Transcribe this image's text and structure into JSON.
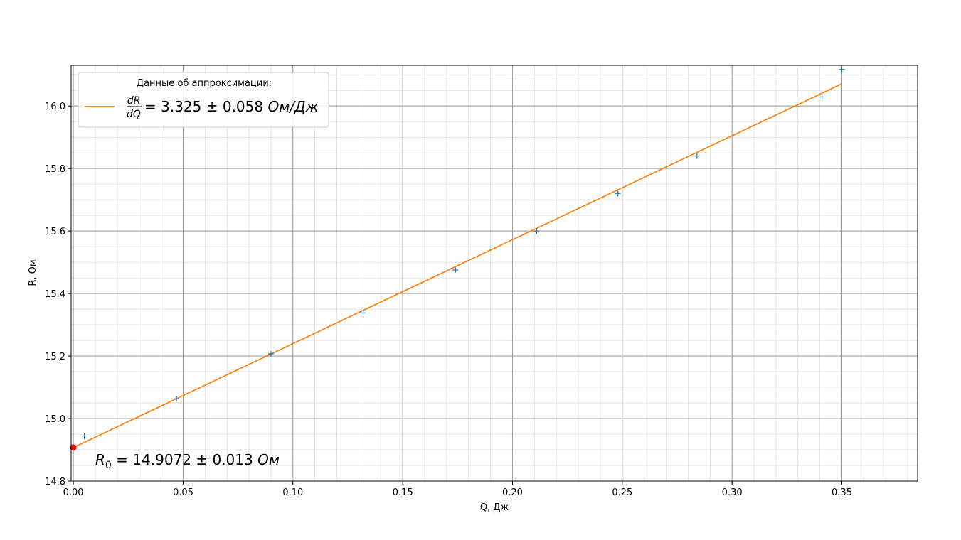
{
  "chart_data": {
    "type": "scatter",
    "xlabel": "Q, Дж",
    "ylabel": "R, Ом",
    "xlim": [
      -0.001,
      0.3845
    ],
    "ylim": [
      14.8,
      16.13
    ],
    "x_ticks": [
      0.0,
      0.05,
      0.1,
      0.15,
      0.2,
      0.25,
      0.3,
      0.35
    ],
    "x_tick_labels": [
      "0.00",
      "0.05",
      "0.10",
      "0.15",
      "0.20",
      "0.25",
      "0.30",
      "0.35"
    ],
    "y_ticks": [
      14.8,
      15.0,
      15.2,
      15.4,
      15.6,
      15.8,
      16.0
    ],
    "y_tick_labels": [
      "14.8",
      "15.0",
      "15.2",
      "15.4",
      "15.6",
      "15.8",
      "16.0"
    ],
    "x_minor_step": 0.01,
    "y_minor_step": 0.05,
    "grid": true,
    "series": [
      {
        "kind": "scatter",
        "marker": "plus",
        "color": "#1f77b4",
        "points": [
          {
            "x": 0.005,
            "y": 14.944
          },
          {
            "x": 0.047,
            "y": 15.063
          },
          {
            "x": 0.09,
            "y": 15.207
          },
          {
            "x": 0.132,
            "y": 15.338
          },
          {
            "x": 0.174,
            "y": 15.475
          },
          {
            "x": 0.211,
            "y": 15.6
          },
          {
            "x": 0.248,
            "y": 15.72
          },
          {
            "x": 0.284,
            "y": 15.84
          },
          {
            "x": 0.341,
            "y": 16.029
          },
          {
            "x": 0.35,
            "y": 16.117
          }
        ]
      },
      {
        "kind": "line",
        "color": "#ff7f0e",
        "from": {
          "x": 0.0,
          "y": 14.9072
        },
        "to": {
          "x": 0.35,
          "y": 16.071
        }
      },
      {
        "kind": "point",
        "color": "#e60000",
        "x": 0.0,
        "y": 14.9072
      }
    ],
    "legend": {
      "title": "Данные об аппроксимации:",
      "placement": "top-left",
      "fraction_num": "dR",
      "fraction_den": "dQ",
      "label_value": " = 3.325 ± 0.058 ",
      "label_unit": "Ом/Дж"
    },
    "annotation": {
      "symbol": "R",
      "subscript": "0",
      "value": " = 14.9072 ± 0.013 ",
      "unit": "Ом"
    }
  }
}
